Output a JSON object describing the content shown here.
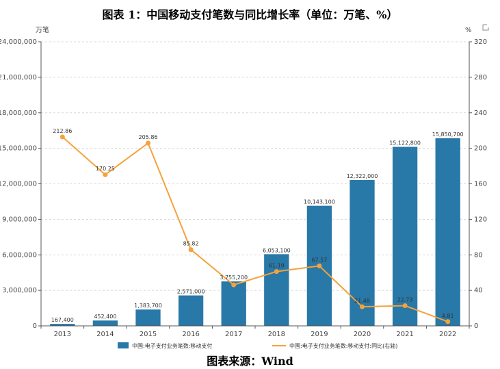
{
  "title": "图表 1：中国移动支付笔数与同比增长率（单位：万笔、%）",
  "source": "图表来源：Wind",
  "colors": {
    "bar": "#2878a8",
    "line": "#f5a23c",
    "grid": "#d8d8d8"
  },
  "chart_data": {
    "type": "bar",
    "categories": [
      "2013",
      "2014",
      "2015",
      "2016",
      "2017",
      "2018",
      "2019",
      "2020",
      "2021",
      "2022"
    ],
    "series": [
      {
        "name": "中国:电子支付业务笔数:移动支付",
        "type": "bar",
        "axis": "left",
        "values": [
          167400,
          452400,
          1383700,
          2571000,
          3755200,
          6053100,
          10143100,
          12322000,
          15122800,
          15850700
        ],
        "labels": [
          "167,400",
          "452,400",
          "1,383,700",
          "2,571,000",
          "3,755,200",
          "6,053,100",
          "10,143,100",
          "12,322,000",
          "15,122,800",
          "15,850,700"
        ]
      },
      {
        "name": "中国:电子支付业务笔数:移动支付:同比(右轴)",
        "type": "line",
        "axis": "right",
        "values": [
          212.86,
          170.25,
          205.86,
          85.82,
          46.16,
          61.19,
          67.57,
          21.48,
          22.73,
          4.81
        ],
        "labels": [
          "212.86",
          "170.25",
          "205.86",
          "85.82",
          "",
          "61.19",
          "67.57",
          "21.48",
          "22.73",
          "4.81"
        ]
      }
    ],
    "y_left": {
      "unit": "万笔",
      "min": 0,
      "max": 24000000,
      "ticks": [
        "0",
        "3,000,000",
        "6,000,000",
        "9,000,000",
        "12,000,000",
        "15,000,000",
        "18,000,000",
        "21,000,000",
        "24,000,000"
      ]
    },
    "y_right": {
      "unit": "%",
      "min": 0,
      "max": 320,
      "ticks": [
        "0",
        "40",
        "80",
        "120",
        "160",
        "200",
        "240",
        "280",
        "320"
      ]
    },
    "grid": true,
    "legend": "bottom-center"
  }
}
